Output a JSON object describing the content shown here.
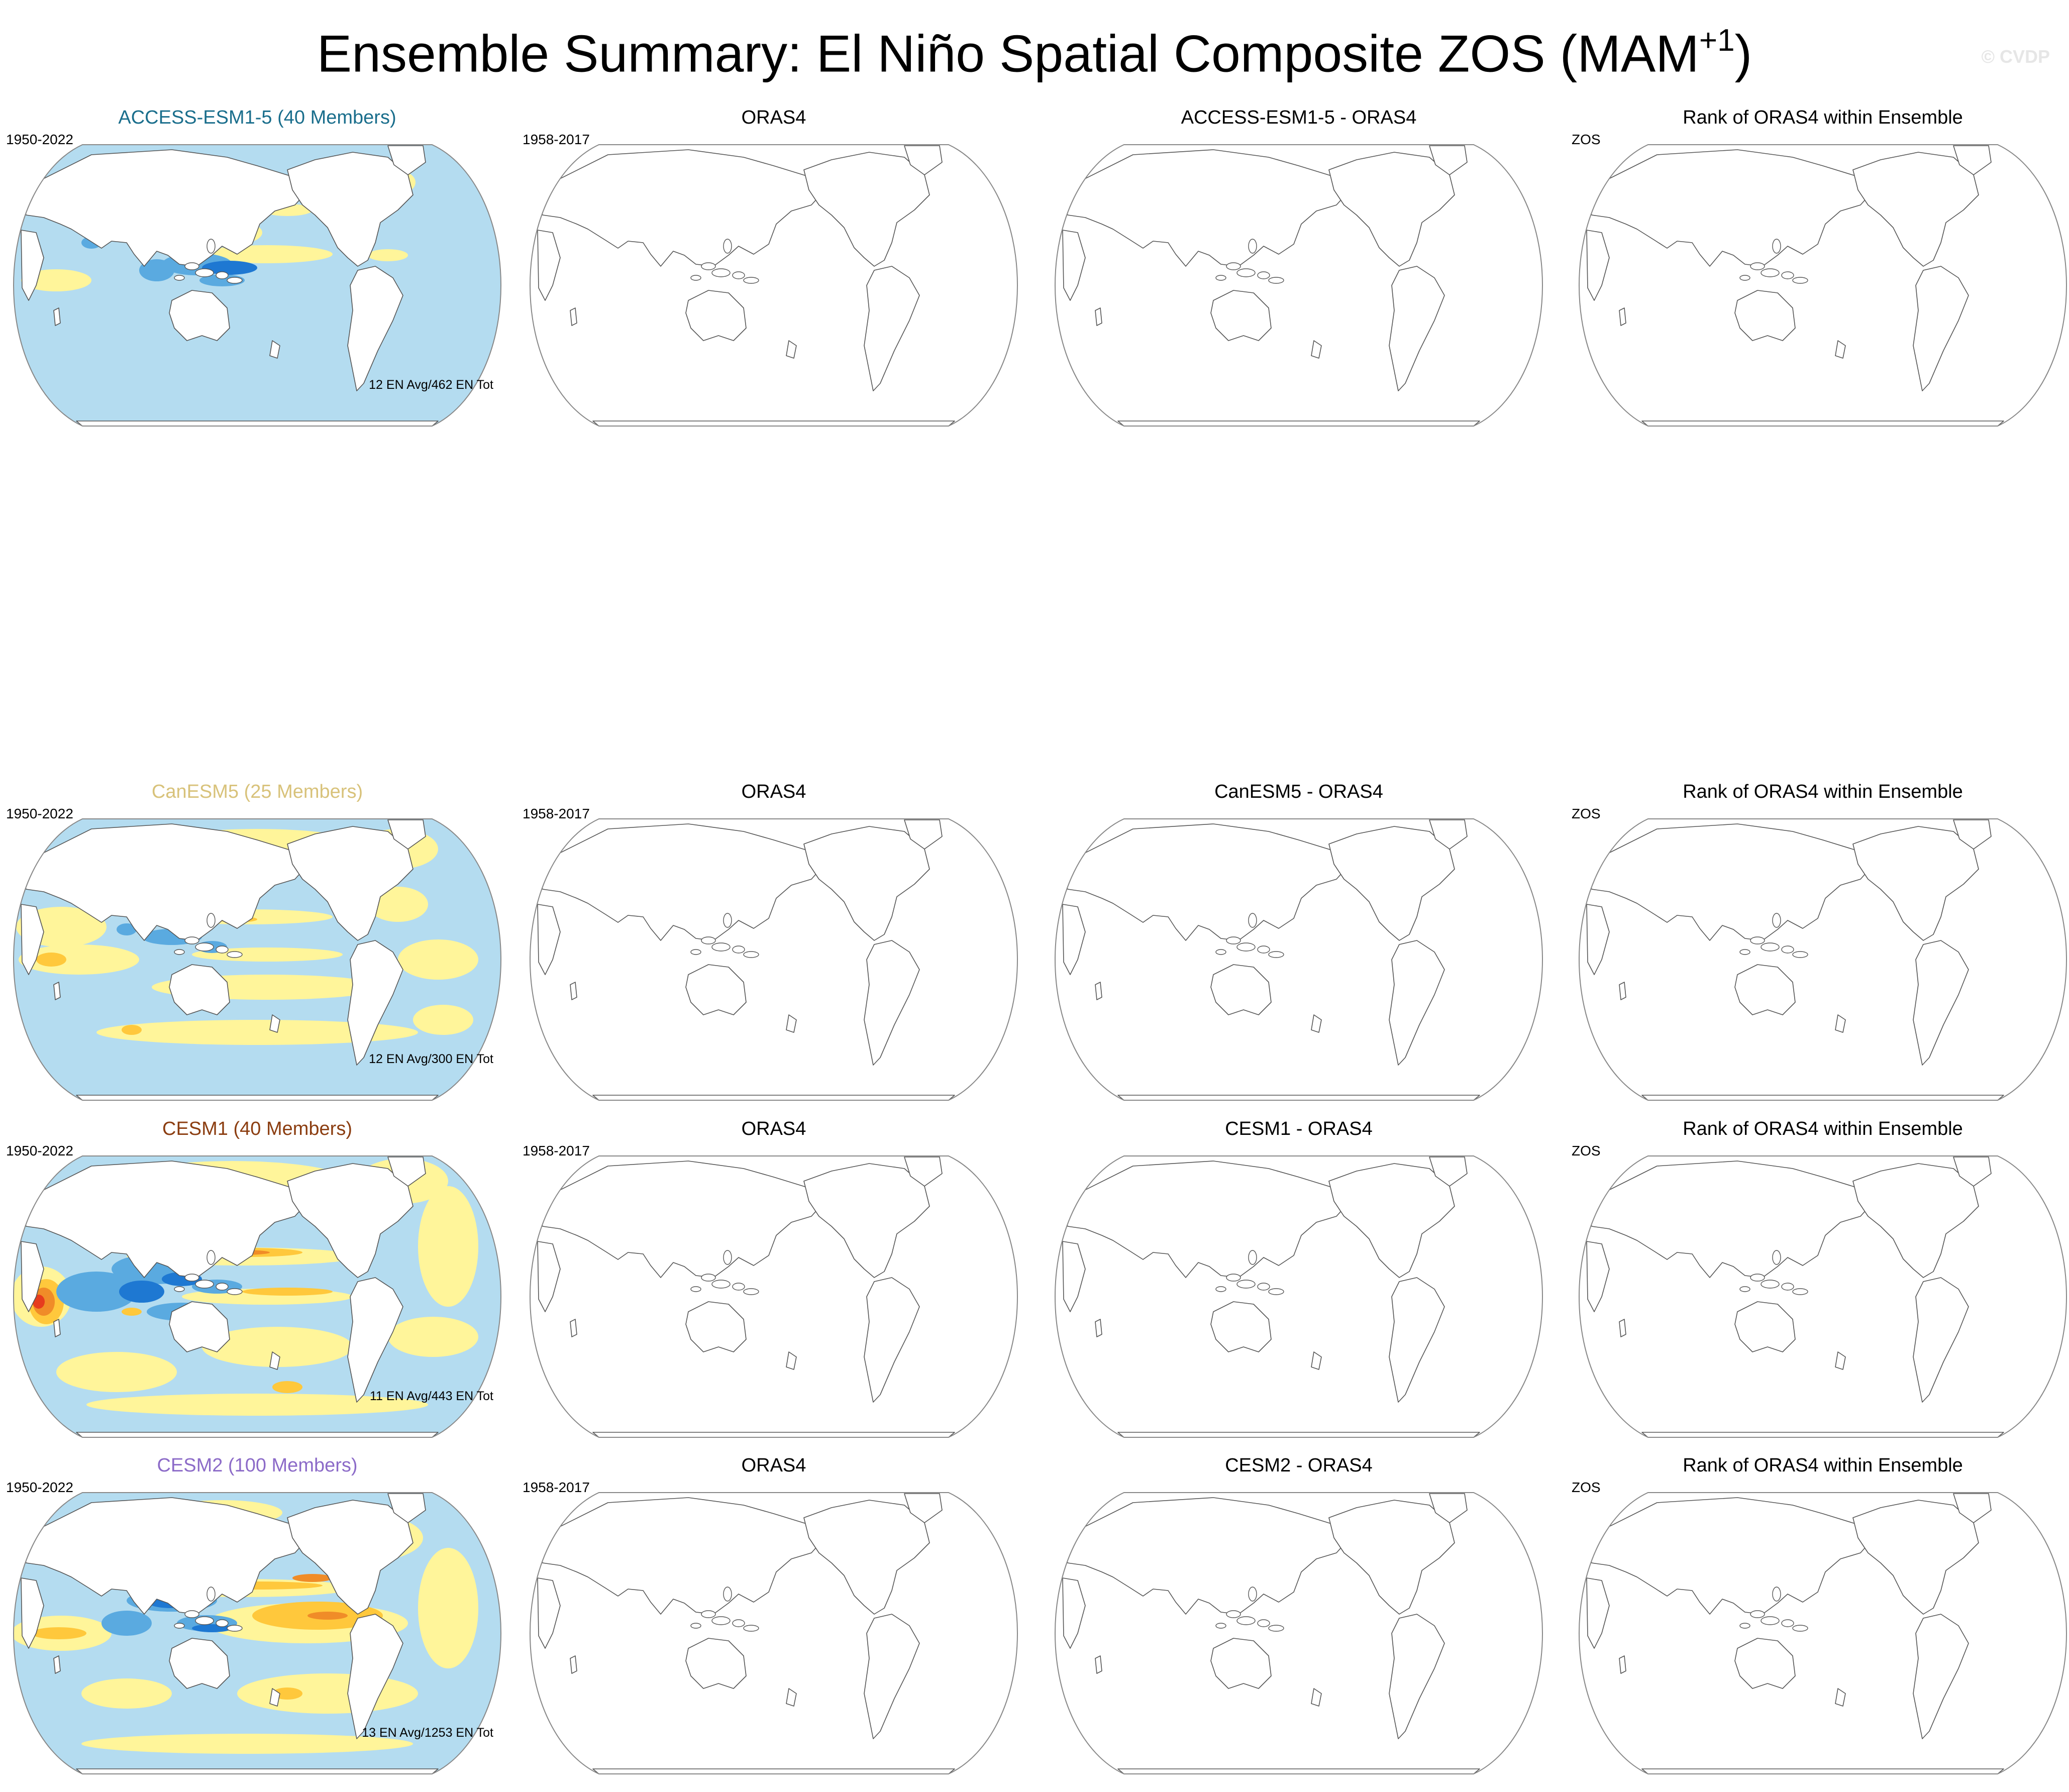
{
  "title": {
    "main": "Ensemble Summary: El Niño Spatial Composite ZOS (MAM",
    "superscript": "+1",
    "close": ")"
  },
  "watermark": "© CVDP",
  "rows": [
    {
      "model": {
        "title": "ACCESS-ESM1-5 (40 Members)",
        "color": "#1a6e8c",
        "period": "1950-2022",
        "count": "12 EN Avg/462 EN Tot",
        "field": "access"
      },
      "obs": {
        "title": "ORAS4",
        "period": "1958-2017"
      },
      "diff": {
        "title": "ACCESS-ESM1-5 - ORAS4"
      },
      "rank": {
        "title": "Rank of ORAS4 within Ensemble",
        "label": "ZOS"
      }
    },
    {
      "model": {
        "title": "CanESM5 (25 Members)",
        "color": "#d8c27a",
        "period": "1950-2022",
        "count": "12 EN Avg/300 EN Tot",
        "field": "canesm"
      },
      "obs": {
        "title": "ORAS4",
        "period": "1958-2017"
      },
      "diff": {
        "title": "CanESM5 - ORAS4"
      },
      "rank": {
        "title": "Rank of ORAS4 within Ensemble",
        "label": "ZOS"
      }
    },
    {
      "model": {
        "title": "CESM1 (40 Members)",
        "color": "#8b3d10",
        "period": "1950-2022",
        "count": "11 EN Avg/443 EN Tot",
        "field": "cesm1"
      },
      "obs": {
        "title": "ORAS4",
        "period": "1958-2017"
      },
      "diff": {
        "title": "CESM1 - ORAS4"
      },
      "rank": {
        "title": "Rank of ORAS4 within Ensemble",
        "label": "ZOS"
      }
    },
    {
      "model": {
        "title": "CESM2 (100 Members)",
        "color": "#8c6bc8",
        "period": "1950-2022",
        "count": "13 EN Avg/1253 EN Tot",
        "field": "cesm2"
      },
      "obs": {
        "title": "ORAS4",
        "period": "1958-2017"
      },
      "diff": {
        "title": "CESM2 - ORAS4"
      },
      "rank": {
        "title": "Rank of ORAS4 within Ensemble",
        "label": "ZOS"
      }
    }
  ],
  "colors": {
    "ocean_negative": "#b4dcf0",
    "blue_medium": "#5aaae0",
    "blue_strong": "#1e78d2",
    "positive_yellow": "#fff59a",
    "orange": "#ffc83c",
    "orange_strong": "#f08c28",
    "red": "#e63c1e",
    "land": "#ffffff",
    "coast": "#555555"
  }
}
